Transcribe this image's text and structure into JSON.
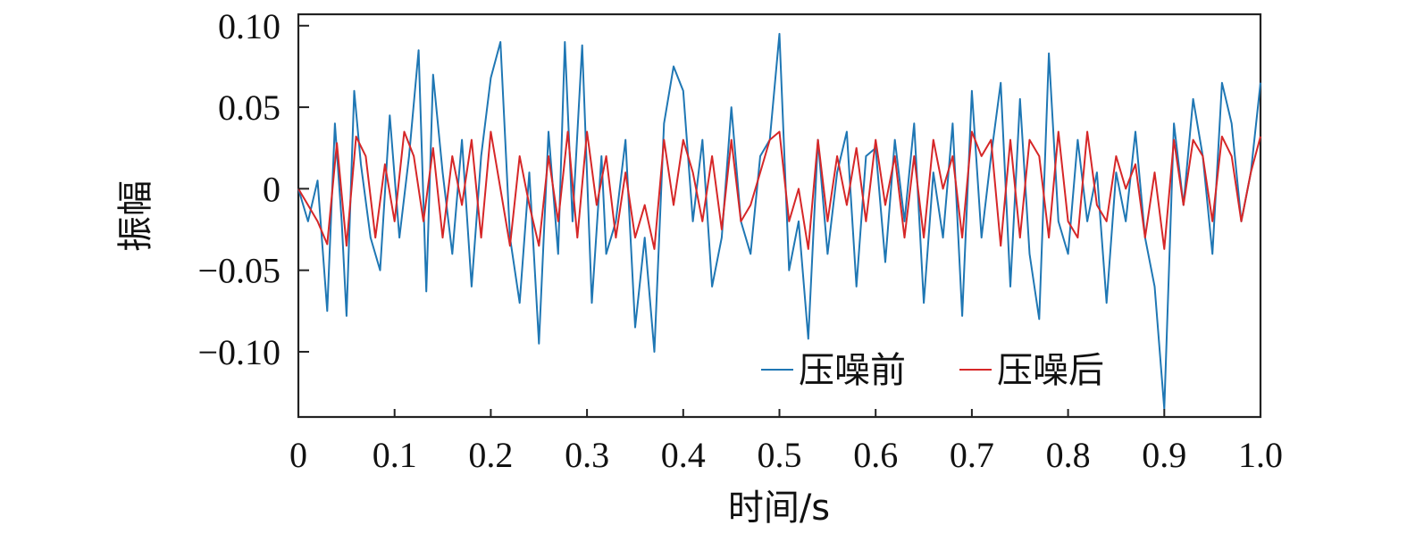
{
  "chart_data": {
    "type": "line",
    "xlabel": "时间/s",
    "ylabel": "振幅",
    "xlim": [
      0,
      1.0
    ],
    "ylim": [
      -0.14,
      0.107
    ],
    "x_ticks": [
      0,
      0.1,
      0.2,
      0.3,
      0.4,
      0.5,
      0.6,
      0.7,
      0.8,
      0.9,
      1.0
    ],
    "x_tick_labels": [
      "0",
      "0.1",
      "0.2",
      "0.3",
      "0.4",
      "0.5",
      "0.6",
      "0.7",
      "0.8",
      "0.9",
      "1.0"
    ],
    "y_ticks": [
      0.1,
      0.05,
      0,
      -0.05,
      -0.1
    ],
    "y_tick_labels": [
      "0.10",
      "0.05",
      "0",
      "−0.05",
      "−0.10"
    ],
    "grid": false,
    "legend_position": "bottom-right",
    "series": [
      {
        "name": "压噪前",
        "color": "#1f77b4",
        "x": [
          0,
          0.01,
          0.02,
          0.025,
          0.03,
          0.038,
          0.045,
          0.05,
          0.058,
          0.065,
          0.075,
          0.085,
          0.095,
          0.105,
          0.115,
          0.125,
          0.133,
          0.14,
          0.15,
          0.16,
          0.17,
          0.18,
          0.19,
          0.2,
          0.21,
          0.22,
          0.23,
          0.24,
          0.25,
          0.26,
          0.27,
          0.277,
          0.285,
          0.295,
          0.305,
          0.315,
          0.32,
          0.33,
          0.34,
          0.35,
          0.36,
          0.37,
          0.38,
          0.39,
          0.4,
          0.41,
          0.42,
          0.43,
          0.44,
          0.45,
          0.46,
          0.47,
          0.48,
          0.49,
          0.5,
          0.51,
          0.52,
          0.53,
          0.54,
          0.55,
          0.56,
          0.57,
          0.58,
          0.59,
          0.6,
          0.61,
          0.62,
          0.63,
          0.64,
          0.65,
          0.66,
          0.67,
          0.68,
          0.69,
          0.7,
          0.71,
          0.72,
          0.73,
          0.74,
          0.75,
          0.76,
          0.77,
          0.78,
          0.79,
          0.8,
          0.81,
          0.82,
          0.83,
          0.84,
          0.85,
          0.86,
          0.87,
          0.88,
          0.89,
          0.9,
          0.91,
          0.92,
          0.93,
          0.94,
          0.95,
          0.96,
          0.97,
          0.98,
          0.99,
          1.0
        ],
        "y": [
          0.0,
          -0.02,
          0.005,
          -0.035,
          -0.075,
          0.04,
          -0.02,
          -0.078,
          0.06,
          0.015,
          -0.03,
          -0.05,
          0.045,
          -0.03,
          0.02,
          0.085,
          -0.063,
          0.07,
          0.01,
          -0.04,
          0.03,
          -0.06,
          0.02,
          0.068,
          0.09,
          -0.03,
          -0.07,
          0.01,
          -0.095,
          0.035,
          -0.04,
          0.09,
          -0.02,
          0.088,
          -0.07,
          0.02,
          -0.04,
          -0.02,
          0.03,
          -0.085,
          -0.03,
          -0.1,
          0.04,
          0.075,
          0.06,
          -0.02,
          0.03,
          -0.06,
          -0.03,
          0.05,
          -0.02,
          -0.04,
          0.02,
          0.03,
          0.095,
          -0.05,
          -0.02,
          -0.092,
          0.03,
          -0.04,
          0.01,
          0.035,
          -0.06,
          0.02,
          0.025,
          -0.045,
          0.03,
          -0.02,
          0.04,
          -0.07,
          0.01,
          -0.03,
          0.04,
          -0.078,
          0.06,
          -0.03,
          0.02,
          0.065,
          -0.06,
          0.055,
          -0.04,
          -0.08,
          0.083,
          -0.02,
          -0.04,
          0.03,
          -0.02,
          0.01,
          -0.07,
          0.01,
          -0.02,
          0.035,
          -0.03,
          -0.06,
          -0.135,
          0.04,
          -0.01,
          0.055,
          0.02,
          -0.04,
          0.065,
          0.04,
          -0.02,
          0.01,
          0.065
        ]
      },
      {
        "name": "压噪后",
        "color": "#d62728",
        "x": [
          0,
          0.01,
          0.02,
          0.03,
          0.04,
          0.05,
          0.06,
          0.07,
          0.08,
          0.09,
          0.1,
          0.11,
          0.12,
          0.13,
          0.14,
          0.15,
          0.16,
          0.17,
          0.18,
          0.19,
          0.2,
          0.21,
          0.22,
          0.23,
          0.24,
          0.25,
          0.26,
          0.27,
          0.28,
          0.29,
          0.3,
          0.31,
          0.32,
          0.33,
          0.34,
          0.35,
          0.36,
          0.37,
          0.38,
          0.39,
          0.4,
          0.41,
          0.42,
          0.43,
          0.44,
          0.45,
          0.46,
          0.47,
          0.48,
          0.49,
          0.5,
          0.51,
          0.52,
          0.53,
          0.54,
          0.55,
          0.56,
          0.57,
          0.58,
          0.59,
          0.6,
          0.61,
          0.62,
          0.63,
          0.64,
          0.65,
          0.66,
          0.67,
          0.68,
          0.69,
          0.7,
          0.71,
          0.72,
          0.73,
          0.74,
          0.75,
          0.76,
          0.77,
          0.78,
          0.79,
          0.8,
          0.81,
          0.82,
          0.83,
          0.84,
          0.85,
          0.86,
          0.87,
          0.88,
          0.89,
          0.9,
          0.91,
          0.92,
          0.93,
          0.94,
          0.95,
          0.96,
          0.97,
          0.98,
          0.99,
          1.0
        ],
        "y": [
          0.0,
          -0.01,
          -0.02,
          -0.034,
          0.028,
          -0.035,
          0.032,
          0.02,
          -0.03,
          0.015,
          -0.02,
          0.035,
          0.02,
          -0.02,
          0.025,
          -0.03,
          0.02,
          -0.01,
          0.03,
          -0.03,
          0.035,
          0.0,
          -0.035,
          0.02,
          -0.01,
          -0.035,
          0.02,
          -0.02,
          0.035,
          -0.03,
          0.035,
          -0.01,
          0.02,
          -0.03,
          0.01,
          -0.03,
          -0.01,
          -0.037,
          0.03,
          -0.01,
          0.03,
          0.01,
          -0.02,
          0.02,
          -0.025,
          0.03,
          -0.02,
          -0.01,
          0.01,
          0.03,
          0.035,
          -0.02,
          0.0,
          -0.037,
          0.03,
          -0.02,
          0.02,
          -0.01,
          0.025,
          -0.02,
          0.03,
          -0.01,
          0.02,
          -0.03,
          0.02,
          -0.03,
          0.03,
          0.0,
          0.02,
          -0.03,
          0.035,
          0.02,
          0.03,
          -0.035,
          0.03,
          -0.03,
          0.03,
          0.02,
          -0.03,
          0.035,
          -0.02,
          -0.03,
          0.035,
          -0.01,
          -0.02,
          0.02,
          0.0,
          0.015,
          -0.03,
          0.01,
          -0.037,
          0.03,
          -0.01,
          0.03,
          0.02,
          -0.02,
          0.032,
          0.02,
          -0.02,
          0.01,
          0.032
        ]
      }
    ]
  }
}
